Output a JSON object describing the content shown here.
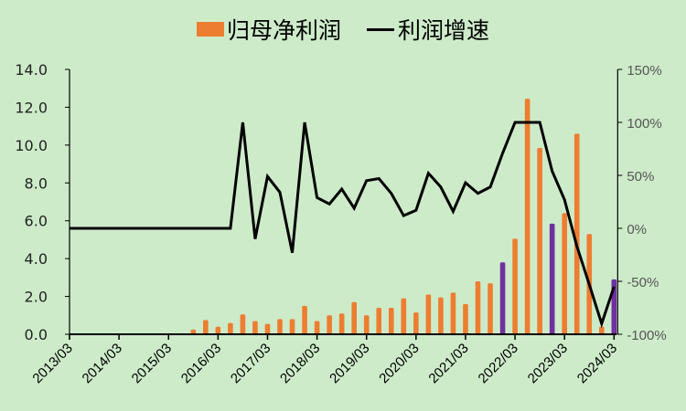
{
  "chart_data": {
    "type": "bar+line",
    "title": "",
    "legend": [
      {
        "label": "归母净利润",
        "type": "bar",
        "color": "#ed7d31"
      },
      {
        "label": "利润增速",
        "type": "line",
        "color": "#000000"
      }
    ],
    "legend_position": "top",
    "x_tick_labels": [
      "2013/03",
      "2014/03",
      "2015/03",
      "2016/03",
      "2017/03",
      "2018/03",
      "2019/03",
      "2020/03",
      "2021/03",
      "2022/03",
      "2023/03",
      "2024/03"
    ],
    "categories": [
      "2013/03",
      "2013/06",
      "2013/09",
      "2013/12",
      "2014/03",
      "2014/06",
      "2014/09",
      "2014/12",
      "2015/03",
      "2015/06",
      "2015/09",
      "2015/12",
      "2016/03",
      "2016/06",
      "2016/09",
      "2016/12",
      "2017/03",
      "2017/06",
      "2017/09",
      "2017/12",
      "2018/03",
      "2018/06",
      "2018/09",
      "2018/12",
      "2019/03",
      "2019/06",
      "2019/09",
      "2019/12",
      "2020/03",
      "2020/06",
      "2020/09",
      "2020/12",
      "2021/03",
      "2021/06",
      "2021/09",
      "2021/12",
      "2022/03",
      "2022/06",
      "2022/09",
      "2022/12",
      "2023/03",
      "2023/06",
      "2023/09",
      "2023/12",
      "2024/03"
    ],
    "series": [
      {
        "name": "归母净利润",
        "type": "bar",
        "axis": "left",
        "color": "#ed7d31",
        "highlight_color": "#7030a0",
        "highlight_categories": [
          "2021/12",
          "2022/12",
          "2024/03"
        ],
        "values": [
          0,
          0,
          0,
          0,
          0,
          0,
          0,
          0,
          0,
          0,
          0.25,
          0.75,
          0.4,
          0.6,
          1.05,
          0.7,
          0.55,
          0.8,
          0.8,
          1.5,
          0.7,
          1.0,
          1.1,
          1.7,
          1.0,
          1.4,
          1.4,
          1.9,
          1.15,
          2.1,
          1.95,
          2.2,
          1.6,
          2.8,
          2.7,
          3.8,
          5.05,
          12.45,
          9.85,
          5.85,
          6.4,
          10.6,
          5.3,
          0.4,
          2.9
        ]
      },
      {
        "name": "利润增速",
        "type": "line",
        "axis": "right",
        "color": "#000000",
        "values": [
          0,
          0,
          0,
          0,
          0,
          0,
          0,
          0,
          0,
          0,
          0,
          0,
          0,
          0,
          100,
          -10,
          49,
          34,
          -23,
          100,
          29,
          23,
          37,
          19,
          45,
          47,
          33,
          12,
          17,
          52,
          39,
          16,
          43,
          33,
          39,
          71,
          100,
          100,
          100,
          54,
          27,
          -17,
          -53,
          -90,
          -55
        ]
      }
    ],
    "y_left": {
      "label": "",
      "ticks": [
        "0.0",
        "2.0",
        "4.0",
        "6.0",
        "8.0",
        "10.0",
        "12.0",
        "14.0"
      ],
      "range": [
        0,
        14
      ]
    },
    "y_right": {
      "label": "",
      "ticks": [
        "-100%",
        "-50%",
        "0%",
        "50%",
        "100%",
        "150%"
      ],
      "range": [
        -100,
        150
      ]
    },
    "grid": false
  }
}
